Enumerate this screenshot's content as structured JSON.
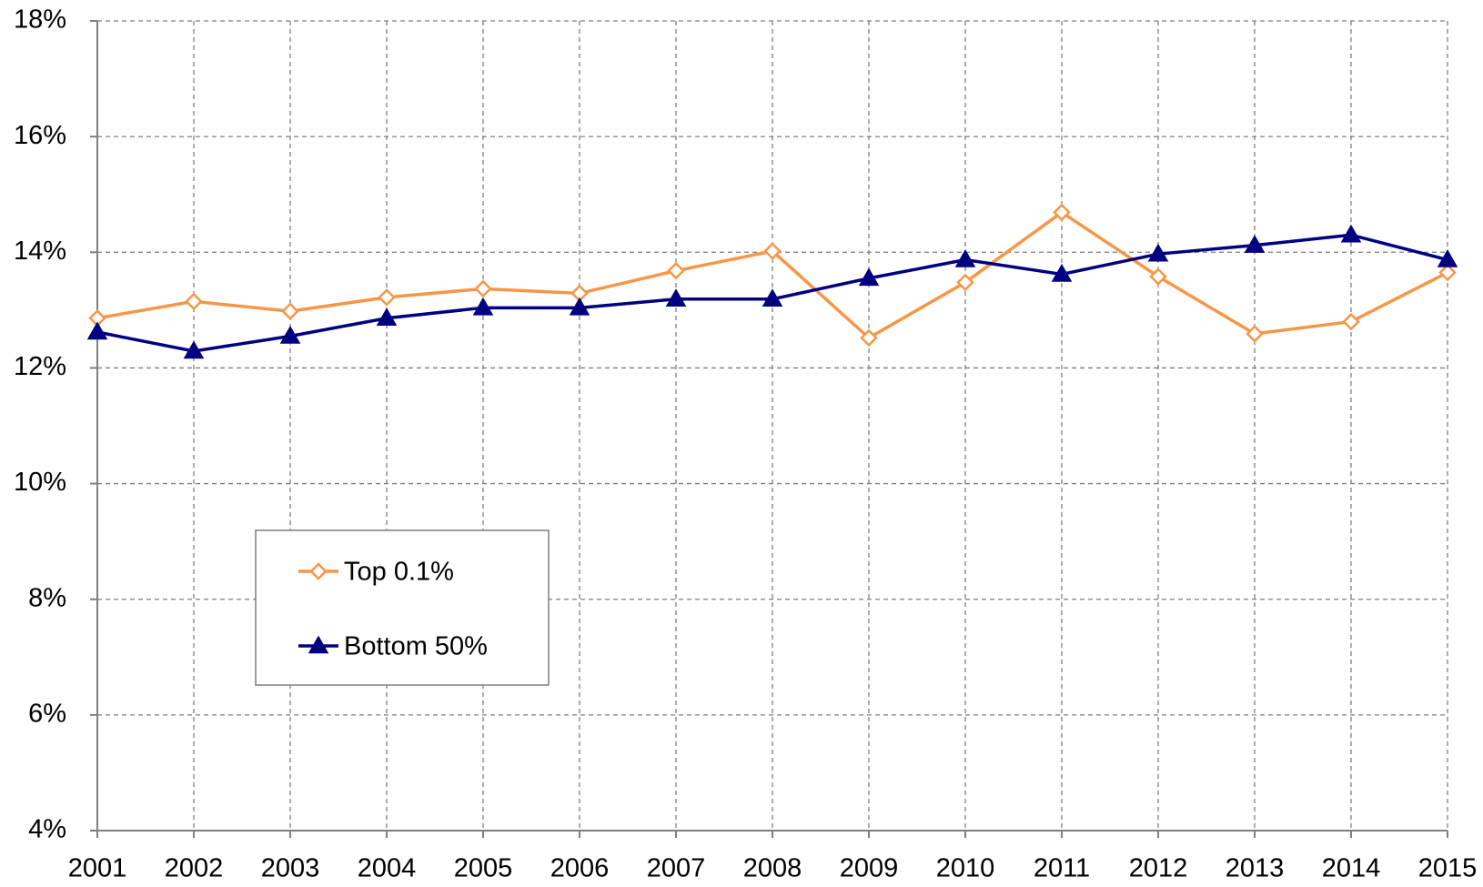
{
  "chart_data": {
    "type": "line",
    "x": [
      2001,
      2002,
      2003,
      2004,
      2005,
      2006,
      2007,
      2008,
      2009,
      2010,
      2011,
      2012,
      2013,
      2014,
      2015
    ],
    "xlim": [
      2001,
      2015
    ],
    "xticks": [
      2001,
      2002,
      2003,
      2004,
      2005,
      2006,
      2007,
      2008,
      2009,
      2010,
      2011,
      2012,
      2013,
      2014,
      2015
    ],
    "ylim": [
      4,
      18
    ],
    "yticks": [
      {
        "value": 4,
        "label": "4%"
      },
      {
        "value": 6,
        "label": "6%"
      },
      {
        "value": 8,
        "label": "8%"
      },
      {
        "value": 10,
        "label": "10%"
      },
      {
        "value": 12,
        "label": "12%"
      },
      {
        "value": 14,
        "label": "14%"
      },
      {
        "value": 16,
        "label": "16%"
      },
      {
        "value": 18,
        "label": "18%"
      }
    ],
    "grid": true,
    "legend_position": "center-left",
    "series": [
      {
        "name": "Top 0.1%",
        "color": "#f79646",
        "marker": "diamond-open",
        "values": [
          12.86,
          13.15,
          12.98,
          13.22,
          13.37,
          13.29,
          13.68,
          14.02,
          12.52,
          13.48,
          14.69,
          13.58,
          12.59,
          12.8,
          13.65
        ]
      },
      {
        "name": "Bottom 50%",
        "color": "#000080",
        "marker": "triangle",
        "values": [
          12.62,
          12.29,
          12.55,
          12.86,
          13.04,
          13.04,
          13.19,
          13.19,
          13.55,
          13.87,
          13.62,
          13.97,
          14.12,
          14.3,
          13.87
        ]
      }
    ]
  }
}
